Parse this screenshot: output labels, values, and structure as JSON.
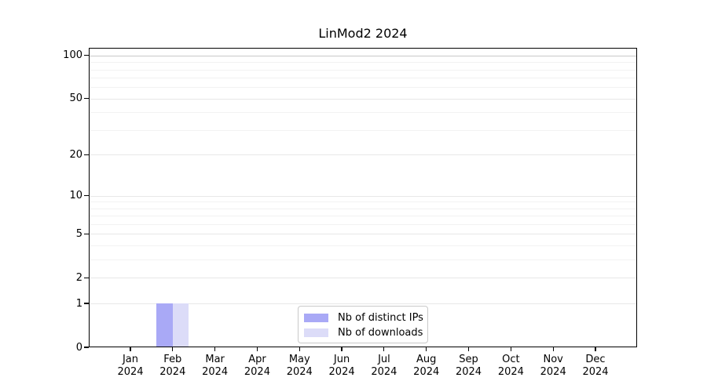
{
  "chart_data": {
    "type": "bar",
    "title": "LinMod2 2024",
    "year": "2024",
    "categories": [
      "Jan",
      "Feb",
      "Mar",
      "Apr",
      "May",
      "Jun",
      "Jul",
      "Aug",
      "Sep",
      "Oct",
      "Nov",
      "Dec"
    ],
    "series": [
      {
        "name": "Nb of distinct IPs",
        "color": "#a9a9f6",
        "values": [
          0,
          1,
          0,
          0,
          0,
          0,
          0,
          0,
          0,
          0,
          0,
          0
        ]
      },
      {
        "name": "Nb of downloads",
        "color": "#dcdcf8",
        "values": [
          0,
          1,
          0,
          0,
          0,
          0,
          0,
          0,
          0,
          0,
          0,
          0
        ]
      }
    ],
    "y_axis": {
      "scale": "log1p",
      "ticks": [
        0,
        1,
        2,
        5,
        10,
        20,
        50,
        100
      ],
      "minor_ticks": [
        3,
        4,
        6,
        7,
        8,
        9,
        30,
        40,
        60,
        70,
        80,
        90
      ],
      "max": 113
    },
    "x_axis": {
      "label_line2": "2024"
    },
    "legend": {
      "position": "lower center"
    },
    "grid": true
  }
}
